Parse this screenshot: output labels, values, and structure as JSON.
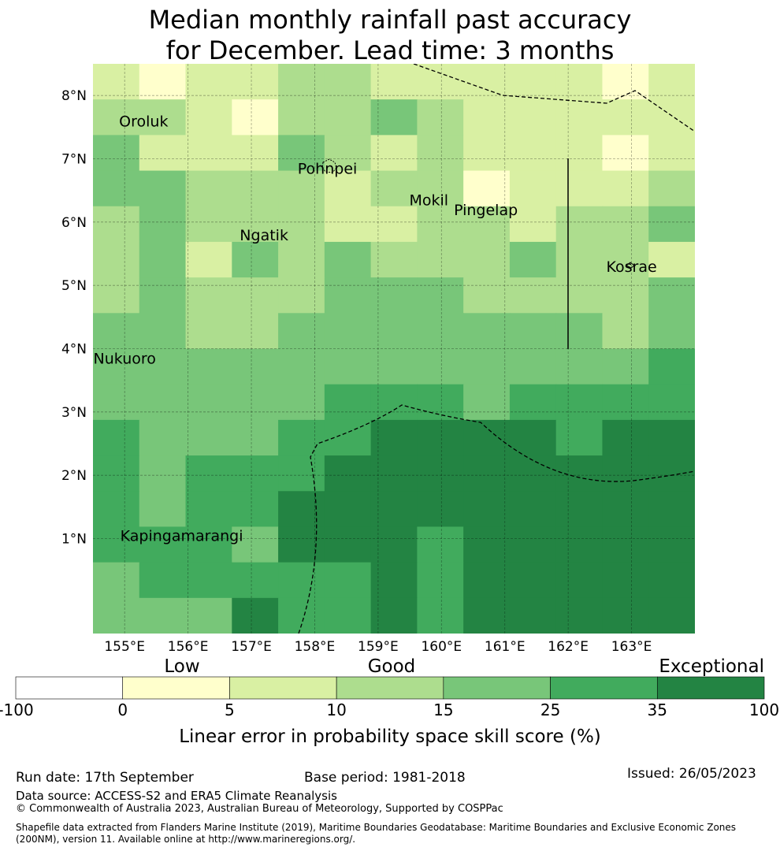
{
  "title": {
    "line1": "Median monthly rainfall past accuracy",
    "line2": "for December. Lead time: 3 months"
  },
  "map": {
    "lon_range": [
      154.5,
      164.0
    ],
    "lat_range": [
      -0.5,
      8.5
    ],
    "lon_ticks": [
      155,
      156,
      157,
      158,
      159,
      160,
      161,
      162,
      163
    ],
    "lon_tick_labels": [
      "155°E",
      "156°E",
      "157°E",
      "158°E",
      "159°E",
      "160°E",
      "161°E",
      "162°E",
      "163°E"
    ],
    "lat_ticks": [
      1,
      2,
      3,
      4,
      5,
      6,
      7,
      8
    ],
    "lat_tick_labels": [
      "1°N",
      "2°N",
      "3°N",
      "4°N",
      "5°N",
      "6°N",
      "7°N",
      "8°N"
    ],
    "grid": true,
    "skill_grid_level_index": [
      [
        2,
        1,
        2,
        2,
        3,
        3,
        2,
        2,
        2,
        2,
        2,
        1,
        2
      ],
      [
        3,
        3,
        2,
        1,
        3,
        3,
        4,
        3,
        2,
        2,
        2,
        2,
        2
      ],
      [
        4,
        2,
        2,
        2,
        4,
        3,
        2,
        3,
        2,
        2,
        2,
        1,
        2
      ],
      [
        4,
        4,
        3,
        3,
        3,
        2,
        3,
        3,
        1,
        2,
        2,
        2,
        3
      ],
      [
        3,
        4,
        3,
        3,
        3,
        2,
        2,
        3,
        3,
        2,
        3,
        3,
        4
      ],
      [
        3,
        4,
        2,
        4,
        3,
        4,
        3,
        3,
        3,
        4,
        3,
        3,
        2
      ],
      [
        3,
        4,
        3,
        3,
        3,
        4,
        4,
        4,
        3,
        3,
        3,
        3,
        4
      ],
      [
        4,
        4,
        3,
        3,
        4,
        4,
        4,
        4,
        4,
        4,
        4,
        3,
        4
      ],
      [
        4,
        4,
        4,
        4,
        4,
        4,
        4,
        4,
        4,
        4,
        4,
        4,
        5
      ],
      [
        4,
        4,
        4,
        4,
        4,
        5,
        5,
        5,
        4,
        5,
        5,
        5,
        5
      ],
      [
        5,
        4,
        4,
        4,
        5,
        5,
        6,
        6,
        6,
        6,
        5,
        6,
        6
      ],
      [
        5,
        4,
        5,
        5,
        5,
        6,
        6,
        6,
        6,
        6,
        6,
        6,
        6
      ],
      [
        5,
        4,
        5,
        5,
        6,
        6,
        6,
        6,
        6,
        6,
        6,
        6,
        6
      ],
      [
        5,
        5,
        5,
        4,
        6,
        6,
        6,
        5,
        6,
        6,
        6,
        6,
        6
      ],
      [
        4,
        5,
        5,
        5,
        5,
        5,
        6,
        5,
        6,
        6,
        6,
        6,
        6
      ],
      [
        4,
        4,
        4,
        6,
        5,
        5,
        6,
        5,
        6,
        6,
        6,
        6,
        6
      ]
    ],
    "places": [
      {
        "name": "Oroluk",
        "lon": 155.3,
        "lat": 7.6
      },
      {
        "name": "Pohnpei",
        "lon": 158.2,
        "lat": 6.85
      },
      {
        "name": "Mokil",
        "lon": 159.8,
        "lat": 6.35
      },
      {
        "name": "Pingelap",
        "lon": 160.7,
        "lat": 6.2
      },
      {
        "name": "Ngatik",
        "lon": 157.2,
        "lat": 5.8
      },
      {
        "name": "Kosrae",
        "lon": 163.0,
        "lat": 5.3
      },
      {
        "name": "Nukuoro",
        "lon": 155.0,
        "lat": 3.85
      },
      {
        "name": "Kapingamarangi",
        "lon": 155.9,
        "lat": 1.05
      }
    ]
  },
  "legend": {
    "category_low": "Low",
    "category_good": "Good",
    "category_exceptional": "Exceptional",
    "boundaries": [
      "-100",
      "0",
      "5",
      "10",
      "15",
      "25",
      "35",
      "100"
    ],
    "colors": [
      "#ffffff",
      "#ffffcc",
      "#d9f0a3",
      "#addd8e",
      "#78c679",
      "#41ab5d",
      "#238443"
    ],
    "label": "Linear error in probability space skill score (%)"
  },
  "footer": {
    "run_date": "Run date: 17th September",
    "base_period": "Base period: 1981-2018",
    "issued": "Issued: 26/05/2023",
    "data_source": "Data source: ACCESS-S2 and ERA5 Climate Reanalysis",
    "copyright": "© Commonwealth of Australia 2023, Australian Bureau of Meteorology, Supported by COSPPac",
    "shapefile": "Shapefile data extracted from Flanders Marine Institute (2019), Maritime Boundaries Geodatabase: Maritime Boundaries and Exclusive Economic Zones (200NM), version 11. Available online at http://www.marineregions.org/."
  }
}
